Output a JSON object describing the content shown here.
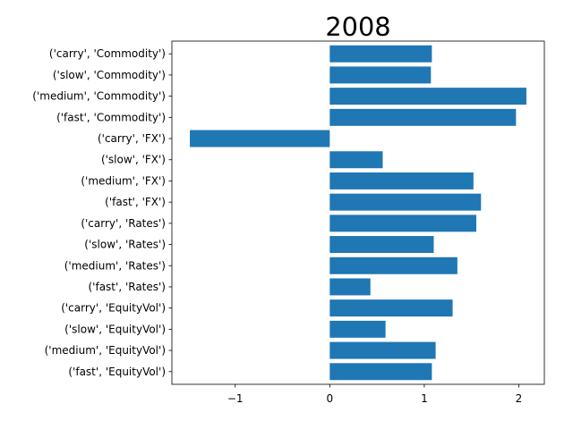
{
  "chart_data": {
    "type": "bar",
    "orientation": "horizontal",
    "title": "2008",
    "xlabel": "",
    "ylabel": "",
    "bar_color": "#1f77b4",
    "xlim": [
      -1.67,
      2.27
    ],
    "xticks": [
      -1,
      0,
      1,
      2
    ],
    "xtick_labels": [
      "−1",
      "0",
      "1",
      "2"
    ],
    "grid": false,
    "categories": [
      "('fast', 'EquityVol')",
      "('medium', 'EquityVol')",
      "('slow', 'EquityVol')",
      "('carry', 'EquityVol')",
      "('fast', 'Rates')",
      "('medium', 'Rates')",
      "('slow', 'Rates')",
      "('carry', 'Rates')",
      "('fast', 'FX')",
      "('medium', 'FX')",
      "('slow', 'FX')",
      "('carry', 'FX')",
      "('fast', 'Commodity')",
      "('medium', 'Commodity')",
      "('slow', 'Commodity')",
      "('carry', 'Commodity')"
    ],
    "values": [
      1.08,
      1.12,
      0.59,
      1.3,
      0.43,
      1.35,
      1.1,
      1.55,
      1.6,
      1.52,
      0.56,
      -1.48,
      1.97,
      2.08,
      1.07,
      1.08
    ]
  }
}
